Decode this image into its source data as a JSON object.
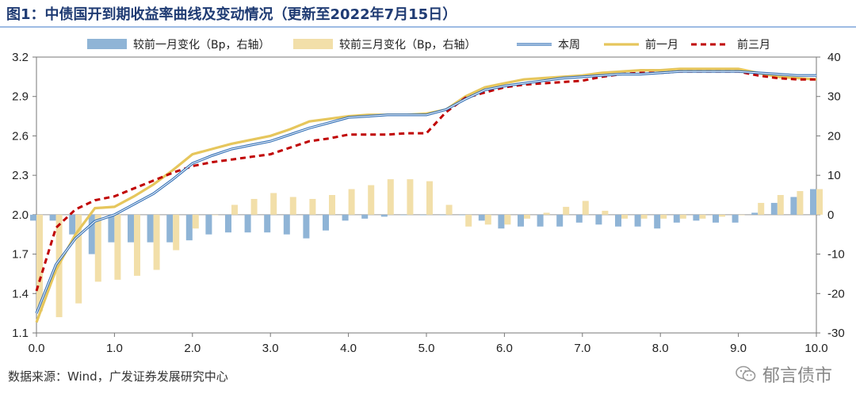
{
  "header": {
    "title": "图1：中债国开到期收益率曲线及变动情况（更新至2022年7月15日）"
  },
  "footer": {
    "source": "数据来源：Wind，广发证券发展研究中心",
    "watermark": "郁言债市"
  },
  "colors": {
    "bar_1m": "#8fb4d6",
    "bar_3m": "#f2dfa9",
    "line_current": "#2f6db5",
    "line_1m": "#e6c65c",
    "line_3m": "#c00000",
    "title": "#1f3b73"
  },
  "chart_data": {
    "type": "line+bar",
    "title": "",
    "xlabel": "",
    "ylabel": "",
    "xlim": [
      0,
      10
    ],
    "ylim": [
      1.1,
      3.2
    ],
    "y2lim": [
      -30,
      40
    ],
    "x_ticks": [
      "0.0",
      "1.0",
      "2.0",
      "3.0",
      "4.0",
      "5.0",
      "6.0",
      "7.0",
      "8.0",
      "9.0",
      "10.0"
    ],
    "y_ticks": [
      "1.1",
      "1.4",
      "1.7",
      "2.0",
      "2.3",
      "2.6",
      "2.9",
      "3.2"
    ],
    "y2_ticks": [
      "-30",
      "-20",
      "-10",
      "0",
      "10",
      "20",
      "30",
      "40"
    ],
    "legend_position": "top",
    "legend": [
      {
        "label": "较前一月变化（Bp，右轴）",
        "kind": "bar",
        "color": "#8fb4d6"
      },
      {
        "label": "较前三月变化（Bp，右轴）",
        "kind": "bar",
        "color": "#f2dfa9"
      },
      {
        "label": "本周",
        "kind": "line-double",
        "color": "#2f6db5"
      },
      {
        "label": "前一月",
        "kind": "line",
        "color": "#e6c65c"
      },
      {
        "label": "前三月",
        "kind": "dashed",
        "color": "#c00000"
      }
    ],
    "tenors": [
      0.0,
      0.25,
      0.5,
      0.75,
      1.0,
      1.25,
      1.5,
      1.75,
      2.0,
      2.25,
      2.5,
      2.75,
      3.0,
      3.25,
      3.5,
      3.75,
      4.0,
      4.25,
      4.5,
      4.75,
      5.0,
      5.25,
      5.5,
      5.75,
      6.0,
      6.25,
      6.5,
      6.75,
      7.0,
      7.25,
      7.5,
      7.75,
      8.0,
      8.25,
      8.5,
      8.75,
      9.0,
      9.25,
      9.5,
      9.75,
      10.0
    ],
    "series": [
      {
        "name": "本周",
        "axis": "left",
        "type": "line",
        "values": [
          1.25,
          1.62,
          1.82,
          1.95,
          2.0,
          2.08,
          2.16,
          2.27,
          2.39,
          2.45,
          2.5,
          2.53,
          2.56,
          2.61,
          2.66,
          2.7,
          2.74,
          2.75,
          2.76,
          2.76,
          2.76,
          2.8,
          2.88,
          2.95,
          2.98,
          3.0,
          3.02,
          3.04,
          3.05,
          3.06,
          3.07,
          3.07,
          3.08,
          3.09,
          3.09,
          3.09,
          3.09,
          3.08,
          3.07,
          3.06,
          3.06
        ]
      },
      {
        "name": "前一月",
        "axis": "left",
        "type": "line",
        "values": [
          1.18,
          1.58,
          1.85,
          2.05,
          2.06,
          2.14,
          2.23,
          2.34,
          2.46,
          2.5,
          2.54,
          2.57,
          2.6,
          2.65,
          2.71,
          2.73,
          2.75,
          2.76,
          2.76,
          2.76,
          2.77,
          2.8,
          2.9,
          2.97,
          3.0,
          3.03,
          3.04,
          3.05,
          3.06,
          3.08,
          3.09,
          3.1,
          3.1,
          3.11,
          3.11,
          3.11,
          3.11,
          3.08,
          3.05,
          3.04,
          3.03
        ]
      },
      {
        "name": "前三月",
        "axis": "left",
        "type": "line",
        "values": [
          1.42,
          1.9,
          2.04,
          2.11,
          2.14,
          2.2,
          2.26,
          2.32,
          2.37,
          2.4,
          2.42,
          2.44,
          2.46,
          2.51,
          2.56,
          2.58,
          2.61,
          2.61,
          2.61,
          2.62,
          2.62,
          2.78,
          2.89,
          2.93,
          2.97,
          2.99,
          3.0,
          3.01,
          3.02,
          3.05,
          3.07,
          3.08,
          3.08,
          3.09,
          3.09,
          3.09,
          3.09,
          3.06,
          3.04,
          3.03,
          3.03
        ]
      },
      {
        "name": "较前一月变化（Bp，右轴）",
        "axis": "right",
        "type": "bar",
        "values": [
          -1.5,
          -1.5,
          -5,
          -10,
          -7,
          -7,
          -7,
          -7,
          -6.5,
          -5,
          -4.5,
          -4.5,
          -4.5,
          -5,
          -6,
          -4,
          -1.5,
          -1,
          -0.5,
          0,
          0,
          0,
          0,
          -1.5,
          -3.5,
          -3,
          -3,
          -3,
          -2,
          -2.5,
          -3,
          -3,
          -3.5,
          -2,
          -1.5,
          -2,
          -2,
          0.5,
          3,
          4.5,
          6.5
        ]
      },
      {
        "name": "较前三月变化（Bp，右轴）",
        "axis": "right",
        "type": "bar",
        "values": [
          -24.5,
          -26,
          -22.5,
          -17,
          -16.5,
          -15.5,
          -14,
          -9,
          -3.5,
          0,
          2.5,
          4,
          5.5,
          4.5,
          4,
          5,
          6.5,
          7.5,
          9,
          9,
          8.5,
          2.5,
          -3,
          -2.5,
          -2.5,
          -1,
          0.5,
          2,
          3.5,
          1,
          -1,
          -1,
          -1,
          -1,
          -1,
          -0.5,
          0,
          3,
          5,
          6,
          6.5
        ]
      }
    ]
  }
}
